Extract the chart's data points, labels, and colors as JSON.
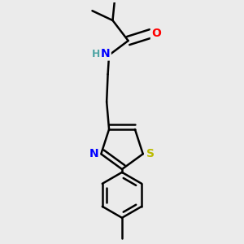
{
  "background_color": "#ebebeb",
  "bond_color": "#000000",
  "bond_width": 1.8,
  "atom_colors": {
    "O": "#ff0000",
    "N": "#0000ff",
    "S": "#bbbb00",
    "H": "#4ea4a4",
    "C": "#000000"
  },
  "font_size": 10,
  "figsize": [
    3.0,
    3.0
  ],
  "dpi": 100,
  "xlim": [
    0.1,
    0.9
  ],
  "ylim": [
    0.0,
    1.0
  ]
}
